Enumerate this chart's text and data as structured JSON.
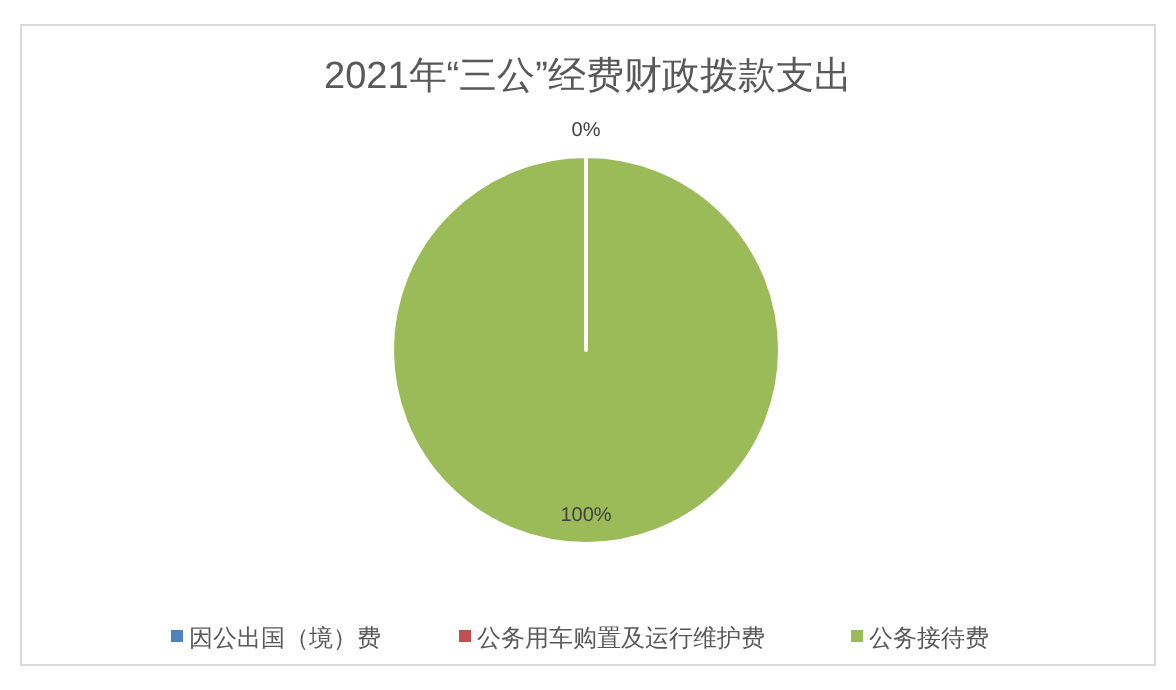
{
  "chart_data": {
    "type": "pie",
    "title": "2021年“三公”经费财政拨款支出",
    "categories": [
      "因公出国（境）费",
      "公务用车购置及运行维护费",
      "公务接待费"
    ],
    "values": [
      0,
      0,
      100
    ],
    "colors": [
      "#4f81bd",
      "#c0504d",
      "#9bbb59"
    ],
    "value_labels": [
      "0%",
      null,
      "100%"
    ],
    "legend": "bottom"
  }
}
